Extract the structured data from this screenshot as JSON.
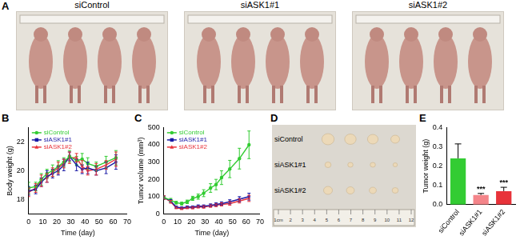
{
  "panels": [
    {
      "panel_label": "A",
      "kind": "photo",
      "labels": [
        "siControl",
        "siASK1#1",
        "siASK1#2"
      ]
    },
    {
      "panel_label": "D",
      "kind": "photo",
      "row_labels": [
        "siControl",
        "siASK1#1",
        "siASK1#2"
      ],
      "ruler_labels": [
        "1cm",
        "2",
        "3",
        "4",
        "5",
        "6",
        "7",
        "8",
        "9",
        "10",
        "11",
        "12"
      ]
    }
  ],
  "chart_data": [
    {
      "panel_label": "B",
      "type": "line",
      "x_label": "Time (day)",
      "y_label": "Body weight (g)",
      "x": [
        0,
        5,
        9,
        13,
        17,
        21,
        25,
        29,
        34,
        38,
        42,
        48,
        55,
        62
      ],
      "xlim": [
        0,
        70
      ],
      "xticks": [
        0,
        10,
        20,
        30,
        40,
        50,
        60,
        70
      ],
      "ylim": [
        17,
        23
      ],
      "yticks": [
        18,
        20,
        22
      ],
      "grid": false,
      "legend": "upper left",
      "series": [
        {
          "name": "siControl",
          "color": "#33cc33",
          "marker": "circle",
          "values": [
            18.8,
            18.9,
            19.4,
            19.8,
            20.0,
            20.3,
            20.6,
            21.0,
            20.7,
            20.8,
            20.5,
            20.3,
            20.6,
            20.9
          ],
          "errors": [
            0.4,
            0.3,
            0.4,
            0.3,
            0.4,
            0.4,
            0.3,
            0.4,
            0.3,
            0.4,
            0.4,
            0.3,
            0.4,
            0.5
          ]
        },
        {
          "name": "siASK1#1",
          "color": "#1a1aa6",
          "marker": "square",
          "values": [
            18.6,
            18.7,
            19.2,
            19.6,
            19.8,
            20.0,
            20.4,
            21.0,
            20.4,
            20.1,
            20.2,
            20.0,
            20.2,
            20.6
          ],
          "errors": [
            0.3,
            0.3,
            0.3,
            0.4,
            0.3,
            0.3,
            0.4,
            0.3,
            0.4,
            0.3,
            0.4,
            0.3,
            0.4,
            0.5
          ]
        },
        {
          "name": "siASK1#2",
          "color": "#e8333a",
          "marker": "triangle",
          "values": [
            18.5,
            18.8,
            19.3,
            19.5,
            19.9,
            20.2,
            20.5,
            20.9,
            20.9,
            20.3,
            20.0,
            20.1,
            20.4,
            20.8
          ],
          "errors": [
            0.3,
            0.3,
            0.4,
            0.3,
            0.3,
            0.4,
            0.3,
            0.4,
            0.3,
            0.4,
            0.3,
            0.4,
            0.3,
            0.5
          ]
        }
      ]
    },
    {
      "panel_label": "C",
      "type": "line",
      "x_label": "Time (day)",
      "y_label": "Tumor volume (mm³)",
      "x": [
        0,
        5,
        9,
        13,
        17,
        21,
        25,
        29,
        34,
        38,
        42,
        48,
        55,
        62
      ],
      "xlim": [
        0,
        70
      ],
      "xticks": [
        0,
        10,
        20,
        30,
        40,
        50,
        60,
        70
      ],
      "ylim": [
        0,
        500
      ],
      "yticks": [
        0,
        100,
        200,
        300,
        400,
        500
      ],
      "grid": false,
      "legend": "upper left",
      "series": [
        {
          "name": "siControl",
          "color": "#33cc33",
          "marker": "circle",
          "values": [
            95,
            80,
            65,
            60,
            70,
            90,
            100,
            120,
            150,
            170,
            210,
            260,
            320,
            400
          ],
          "errors": [
            10,
            10,
            8,
            8,
            10,
            12,
            15,
            20,
            25,
            30,
            40,
            50,
            60,
            80
          ]
        },
        {
          "name": "siASK1#1",
          "color": "#1a1aa6",
          "marker": "square",
          "values": [
            95,
            75,
            40,
            35,
            40,
            40,
            45,
            45,
            50,
            55,
            60,
            70,
            85,
            100
          ],
          "errors": [
            10,
            8,
            6,
            5,
            6,
            6,
            7,
            7,
            8,
            9,
            10,
            12,
            15,
            20
          ]
        },
        {
          "name": "siASK1#2",
          "color": "#e8333a",
          "marker": "triangle",
          "values": [
            95,
            70,
            35,
            30,
            35,
            35,
            40,
            40,
            45,
            50,
            55,
            60,
            75,
            90
          ],
          "errors": [
            10,
            8,
            5,
            5,
            5,
            6,
            6,
            7,
            7,
            8,
            9,
            10,
            12,
            18
          ]
        }
      ]
    },
    {
      "panel_label": "E",
      "type": "bar",
      "y_label": "Tumor weight (g)",
      "categories": [
        "siControl",
        "siASK1#1",
        "siASK1#2"
      ],
      "values": [
        0.24,
        0.05,
        0.07
      ],
      "errors": [
        0.075,
        0.008,
        0.02
      ],
      "significance": [
        null,
        "***",
        "***"
      ],
      "colors": [
        "#33cc33",
        "#f4858a",
        "#e8333a"
      ],
      "ylim": [
        0,
        0.4
      ],
      "yticks": [
        {
          "value": 0,
          "label": "0.0"
        },
        0.1,
        0.2,
        0.3,
        0.4
      ],
      "grid": false
    }
  ]
}
